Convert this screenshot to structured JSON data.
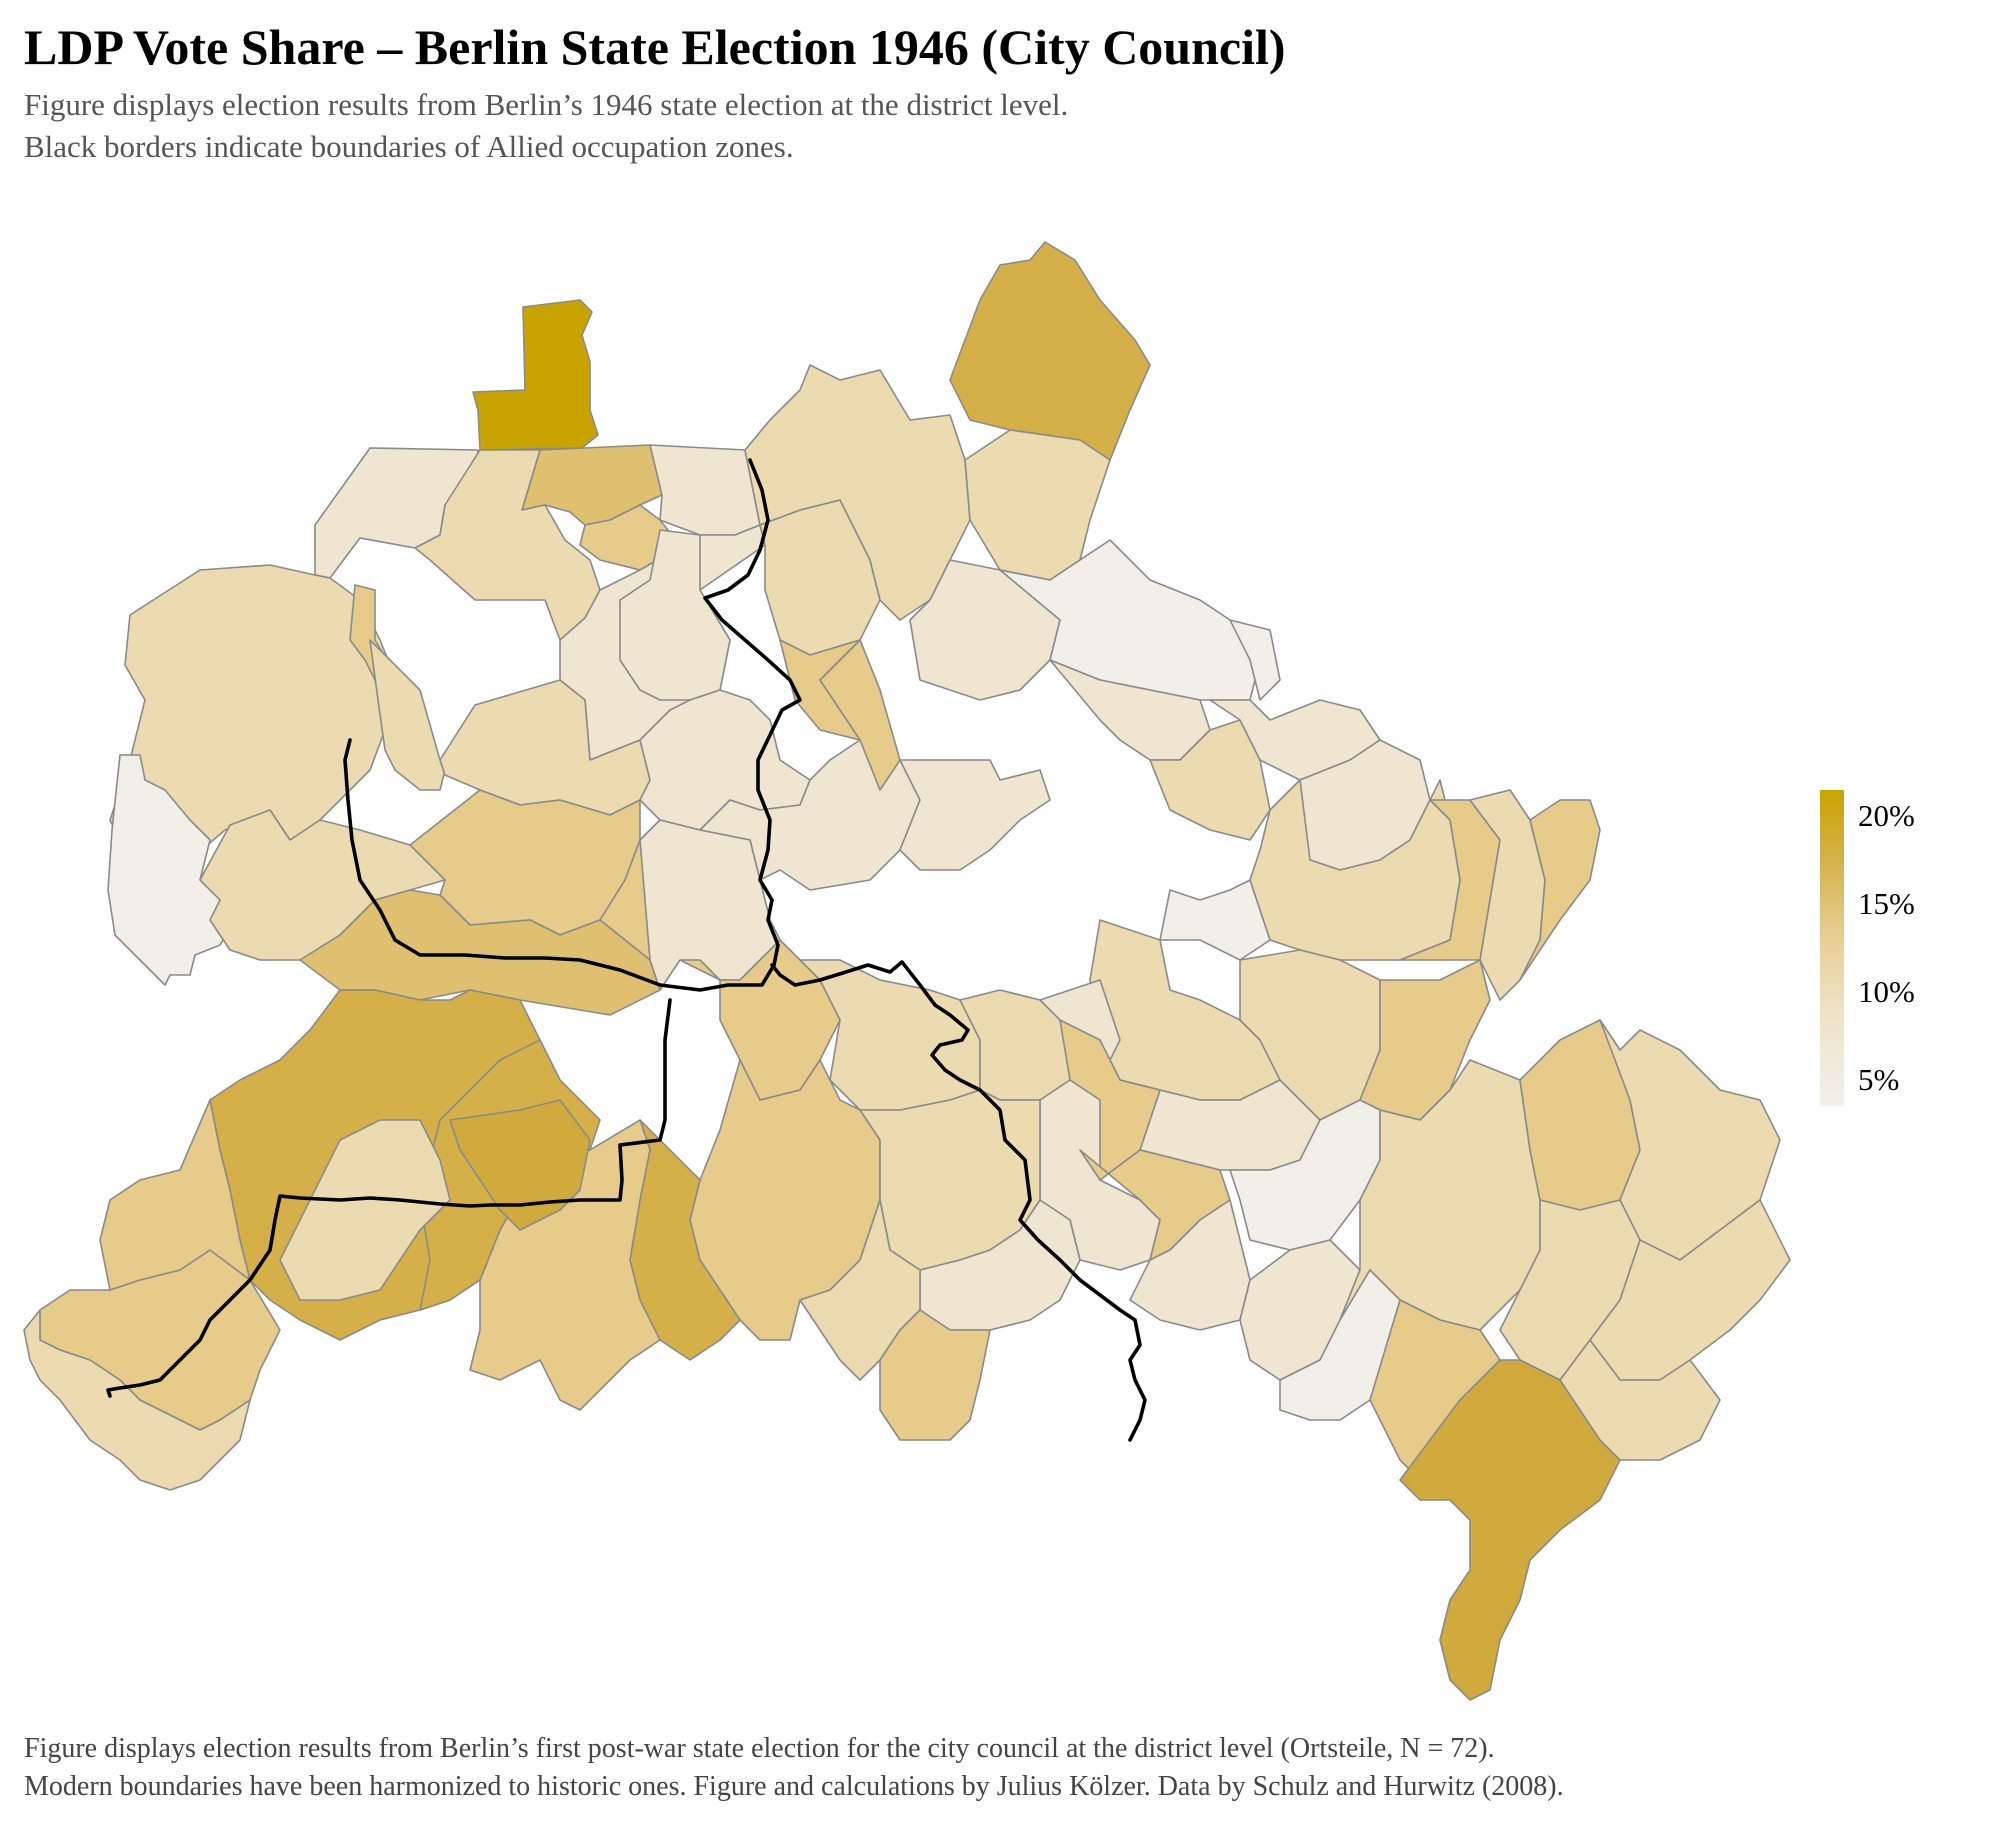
{
  "title": "LDP Vote Share – Berlin State Election 1946 (City Council)",
  "subtitle_lines": [
    "Figure displays election results from Berlin’s 1946 state election at the district level.",
    "Black borders indicate boundaries of Allied occupation zones."
  ],
  "caption_lines": [
    "Figure displays election results from Berlin’s first post-war state election for the city council at the district level (Ortsteile, N = 72).",
    "Modern boundaries have been harmonized to historic ones. Figure and calculations by Julius Kölzer. Data by Schulz and Hurwitz (2008)."
  ],
  "legend": {
    "labels": [
      "20%",
      "15%",
      "10%",
      "5%"
    ],
    "color_scale": [
      "#f2f0ec",
      "#efe3c6",
      "#e6cd90",
      "#d3b24a",
      "#c9a400"
    ]
  },
  "chart_data": {
    "type": "heatmap",
    "kind": "choropleth map",
    "geography": "Berlin districts (Ortsteile)",
    "n_districts": 72,
    "value": "LDP vote share (%)",
    "legend_ticks": [
      20,
      15,
      10,
      5
    ],
    "scale_min_color": "#f2f0ec",
    "scale_max_color": "#c9a400",
    "overlay": "Allied occupation zone boundaries (black lines)",
    "legend_position": "right",
    "grid": false
  }
}
